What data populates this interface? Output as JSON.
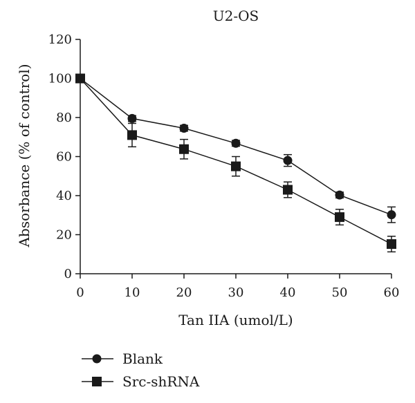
{
  "chart_data": {
    "type": "line",
    "title": "U2-OS",
    "xlabel": "Tan IIA (umol/L)",
    "ylabel": "Absorbance (% of control)",
    "x": [
      0,
      10,
      20,
      30,
      40,
      50,
      60
    ],
    "xlim": [
      0,
      60
    ],
    "ylim": [
      0,
      120
    ],
    "xticks": [
      "0",
      "10",
      "20",
      "30",
      "40",
      "50",
      "60"
    ],
    "yticks": [
      "0",
      "20",
      "40",
      "60",
      "80",
      "100",
      "120"
    ],
    "grid": false,
    "legend_position": "bottom-left",
    "series": [
      {
        "name": "Blank",
        "marker": "circle",
        "color": "#1a1a1a",
        "values": [
          100,
          79.5,
          74.5,
          66.8,
          58,
          40.3,
          30.2
        ],
        "error": [
          0,
          1.5,
          1.5,
          1.5,
          3,
          1.5,
          4
        ]
      },
      {
        "name": "Src-shRNA",
        "marker": "square",
        "color": "#1a1a1a",
        "values": [
          100,
          71,
          63.8,
          55,
          43,
          29,
          15.2
        ],
        "error": [
          0,
          6,
          5,
          5,
          4,
          4,
          4
        ]
      }
    ]
  }
}
